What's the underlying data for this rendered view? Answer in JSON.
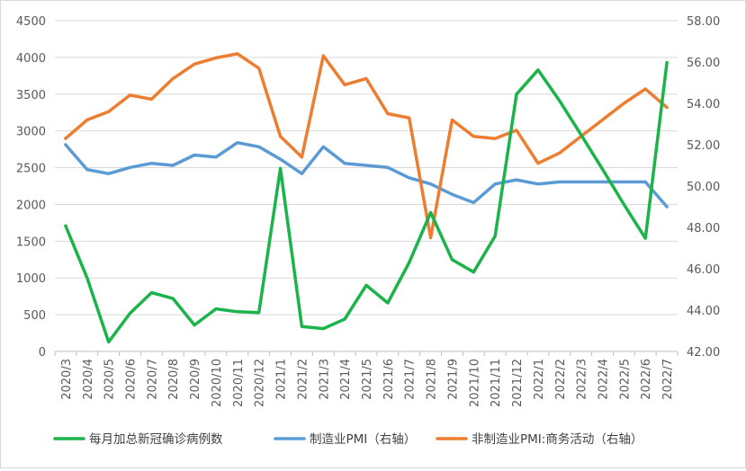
{
  "chart_data": {
    "type": "line",
    "title": "",
    "x": [
      "2020/3",
      "2020/4",
      "2020/5",
      "2020/6",
      "2020/7",
      "2020/8",
      "2020/9",
      "2020/10",
      "2020/11",
      "2020/12",
      "2021/1",
      "2021/2",
      "2021/3",
      "2021/4",
      "2021/5",
      "2021/6",
      "2021/7",
      "2021/8",
      "2021/9",
      "2021/10",
      "2021/11",
      "2021/12",
      "2022/1",
      "2022/2",
      "2022/3",
      "2022/4",
      "2022/5",
      "2022/6",
      "2022/7"
    ],
    "y_left": {
      "min": 0,
      "max": 4500,
      "step": 500,
      "ticks": [
        "0",
        "500",
        "1000",
        "1500",
        "2000",
        "2500",
        "3000",
        "3500",
        "4000",
        "4500"
      ]
    },
    "y_right": {
      "min": 42,
      "max": 58,
      "step": 2,
      "ticks": [
        "42.00",
        "44.00",
        "46.00",
        "48.00",
        "50.00",
        "52.00",
        "54.00",
        "56.00",
        "58.00"
      ]
    },
    "grid": true,
    "legend_position": "bottom",
    "series": [
      {
        "name": "每月加总新冠确诊病例数",
        "axis": "left",
        "color": "#1db34b",
        "values": [
          1710,
          1000,
          130,
          520,
          800,
          720,
          360,
          580,
          540,
          530,
          2490,
          340,
          310,
          440,
          900,
          660,
          1210,
          1890,
          1250,
          1080,
          1570,
          3500,
          3830,
          3410,
          2950,
          2480,
          2000,
          1540,
          3930
        ]
      },
      {
        "name": "制造业PMI（右轴）",
        "axis": "right",
        "color": "#5b9bd5",
        "values": [
          52.0,
          50.8,
          50.6,
          50.9,
          51.1,
          51.0,
          51.5,
          51.4,
          52.1,
          51.9,
          51.3,
          50.6,
          51.9,
          51.1,
          51.0,
          50.9,
          50.4,
          50.1,
          49.6,
          49.2,
          50.1,
          50.3,
          50.1,
          50.2,
          50.2,
          50.2,
          50.2,
          50.2,
          49.0
        ]
      },
      {
        "name": "非制造业PMI:商务活动（右轴）",
        "axis": "right",
        "color": "#ed7d31",
        "values": [
          52.3,
          53.2,
          53.6,
          54.4,
          54.2,
          55.2,
          55.9,
          56.2,
          56.4,
          55.7,
          52.4,
          51.4,
          56.3,
          54.9,
          55.2,
          53.5,
          53.3,
          47.5,
          53.2,
          52.4,
          52.3,
          52.7,
          51.1,
          51.6,
          52.4,
          53.2,
          54.0,
          54.7,
          53.8
        ]
      }
    ]
  }
}
